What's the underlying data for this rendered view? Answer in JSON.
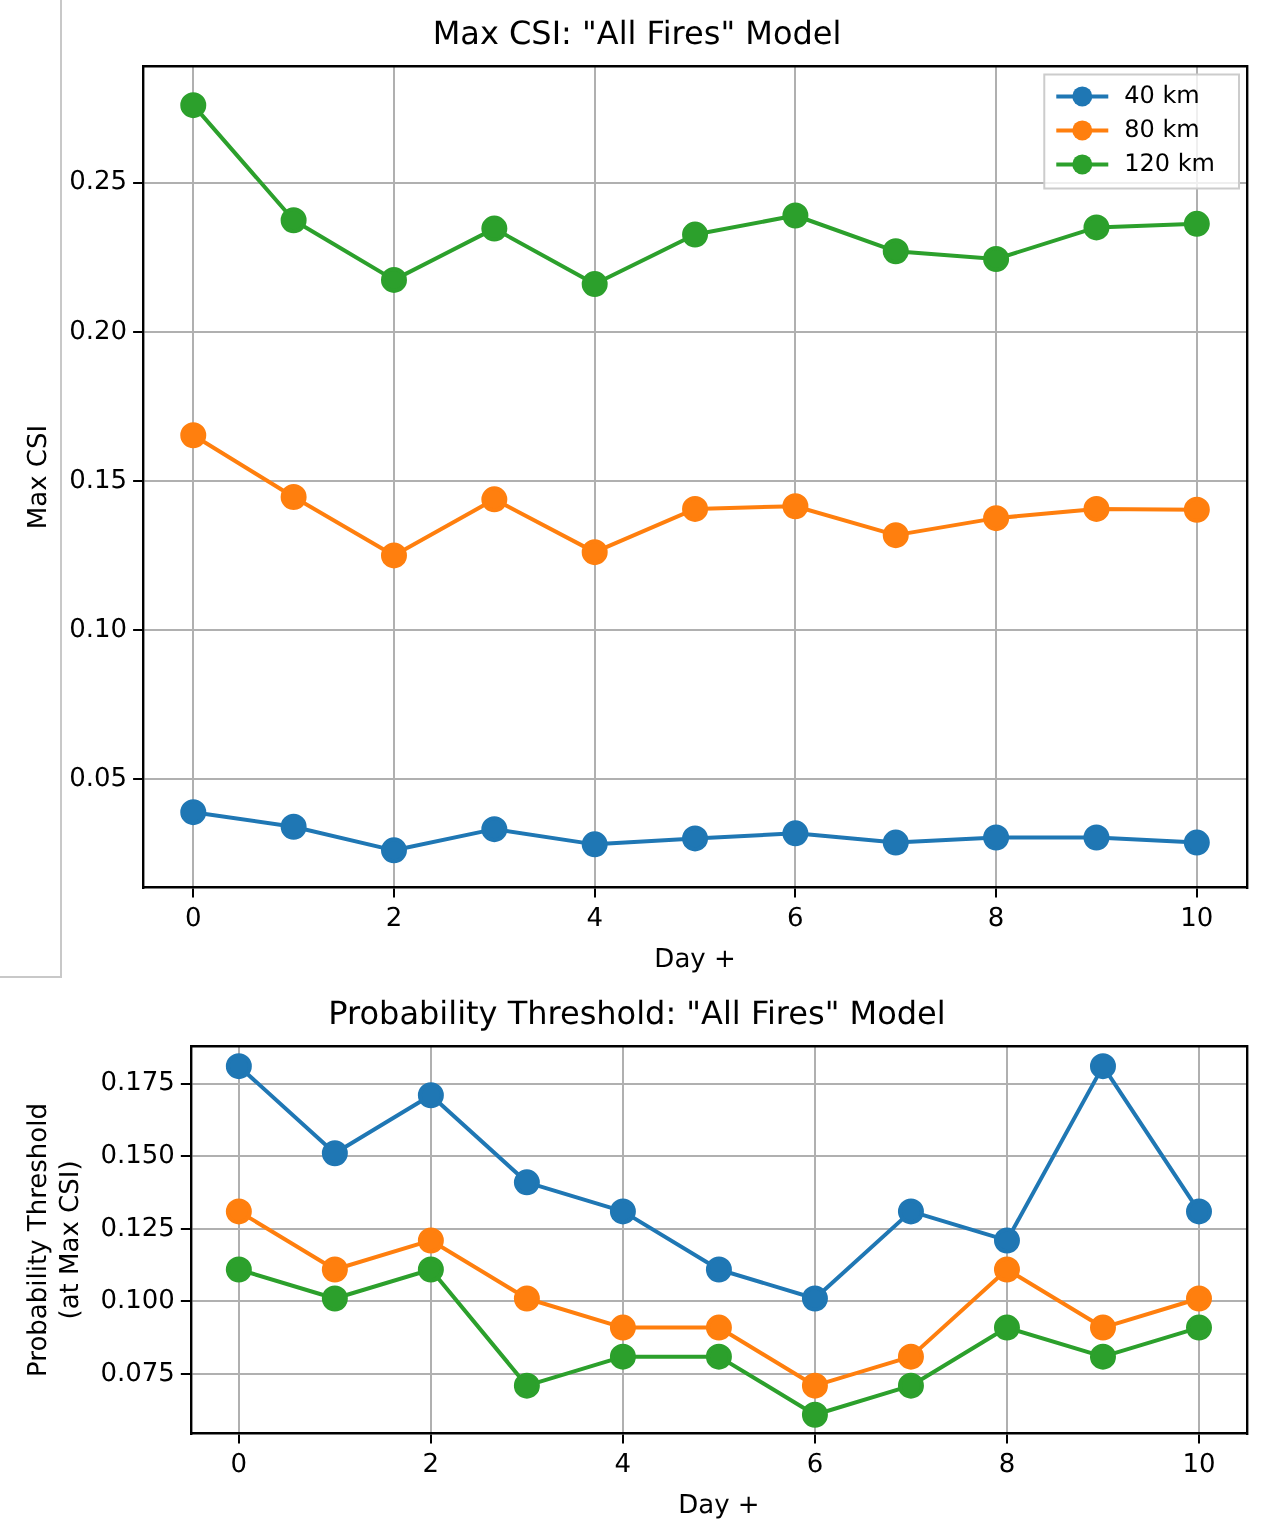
{
  "chart_data": [
    {
      "type": "line",
      "title": "Max CSI: \"All Fires\" Model",
      "xlabel": "Day +",
      "ylabel": "Max CSI",
      "x": [
        0,
        1,
        2,
        3,
        4,
        5,
        6,
        7,
        8,
        9,
        10
      ],
      "series": [
        {
          "name": "40 km",
          "color": "#1f77b4",
          "values": [
            0.0389,
            0.034,
            0.0261,
            0.0332,
            0.0281,
            0.0301,
            0.0318,
            0.0287,
            0.0304,
            0.0304,
            0.0287
          ]
        },
        {
          "name": "80 km",
          "color": "#ff7f0e",
          "values": [
            0.1653,
            0.1446,
            0.125,
            0.1438,
            0.1261,
            0.1406,
            0.1415,
            0.1318,
            0.1375,
            0.1406,
            0.1403
          ]
        },
        {
          "name": "120 km",
          "color": "#2ca02c",
          "values": [
            0.276,
            0.2374,
            0.2174,
            0.2346,
            0.216,
            0.2326,
            0.239,
            0.227,
            0.2244,
            0.235,
            0.2362
          ]
        }
      ],
      "xlim": [
        -0.5,
        10.5
      ],
      "xticks": [
        0,
        2,
        4,
        6,
        8,
        10
      ],
      "ylim": [
        0.0136,
        0.289
      ],
      "yticks": [
        {
          "value": 0.05,
          "label": "0.05"
        },
        {
          "value": 0.1,
          "label": "0.10"
        },
        {
          "value": 0.15,
          "label": "0.15"
        },
        {
          "value": 0.2,
          "label": "0.20"
        },
        {
          "value": 0.25,
          "label": "0.25"
        }
      ],
      "grid": true,
      "legend": "top right",
      "marker": "circle",
      "line_style": "solid"
    },
    {
      "type": "line",
      "title": "Probability Threshold: \"All Fires\" Model",
      "xlabel": "Day +",
      "ylabel": "Probability Threshold\n(at Max CSI)",
      "x": [
        0,
        1,
        2,
        3,
        4,
        5,
        6,
        7,
        8,
        9,
        10
      ],
      "series": [
        {
          "color": "#1f77b4",
          "values": [
            0.181,
            0.151,
            0.171,
            0.141,
            0.131,
            0.111,
            0.101,
            0.131,
            0.121,
            0.181,
            0.131
          ]
        },
        {
          "color": "#ff7f0e",
          "values": [
            0.131,
            0.111,
            0.121,
            0.101,
            0.091,
            0.091,
            0.071,
            0.081,
            0.111,
            0.091,
            0.101
          ]
        },
        {
          "color": "#2ca02c",
          "values": [
            0.111,
            0.101,
            0.111,
            0.071,
            0.081,
            0.081,
            0.061,
            0.071,
            0.091,
            0.081,
            0.091
          ]
        }
      ],
      "xlim": [
        -0.5,
        10.5
      ],
      "xticks": [
        0,
        2,
        4,
        6,
        8,
        10
      ],
      "ylim": [
        0.0545,
        0.1878
      ],
      "yticks": [
        {
          "value": 0.075,
          "label": "0.075"
        },
        {
          "value": 0.1,
          "label": "0.100"
        },
        {
          "value": 0.125,
          "label": "0.125"
        },
        {
          "value": 0.15,
          "label": "0.150"
        },
        {
          "value": 0.175,
          "label": "0.175"
        }
      ],
      "grid": true,
      "marker": "circle",
      "line_style": "solid"
    }
  ]
}
